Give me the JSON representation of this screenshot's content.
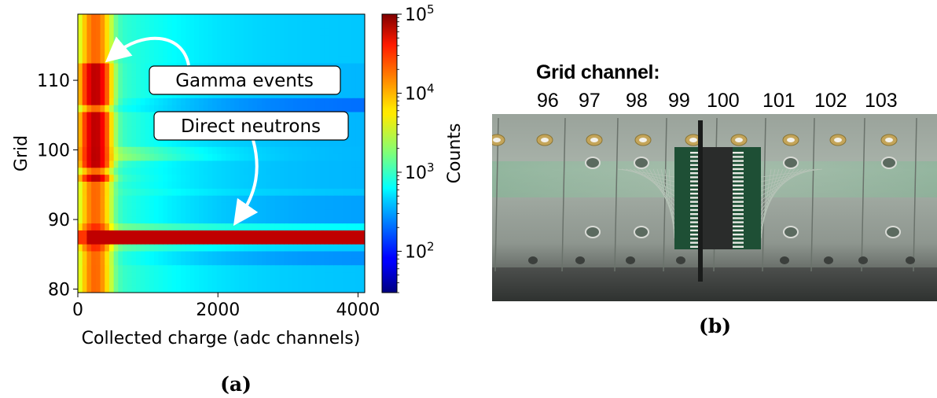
{
  "chart_data": {
    "type": "heatmap",
    "panel_label": "(a)",
    "xlabel": "Collected charge (adc channels)",
    "ylabel": "Grid",
    "xlim": [
      0,
      4096
    ],
    "ylim": [
      79.5,
      119.5
    ],
    "x_ticks": [
      "0",
      "2000",
      "4000"
    ],
    "y_ticks": [
      "80",
      "90",
      "100",
      "110"
    ],
    "colorbar": {
      "label": "Counts",
      "scale": "log",
      "range": [
        30,
        100000
      ],
      "ticks": [
        {
          "base": "10",
          "exp": "2",
          "value": 100
        },
        {
          "base": "10",
          "exp": "3",
          "value": 1000
        },
        {
          "base": "10",
          "exp": "4",
          "value": 10000
        },
        {
          "base": "10",
          "exp": "5",
          "value": 100000
        }
      ]
    },
    "features": {
      "neutron_band_grid": [
        87,
        88
      ],
      "neutron_band_counts": 60000,
      "gamma_column_adc": 250,
      "gamma_peak_grids": [
        96,
        98,
        99,
        100,
        101,
        102,
        103,
        104,
        105,
        107,
        108,
        109,
        110,
        111,
        112
      ]
    },
    "annotations": [
      {
        "text": "Gamma events"
      },
      {
        "text": "Direct neutrons"
      }
    ]
  },
  "photo": {
    "panel_label": "(b)",
    "title": "Grid channel:",
    "channels": [
      "96",
      "97",
      "98",
      "99",
      "100",
      "101",
      "102",
      "103"
    ]
  }
}
